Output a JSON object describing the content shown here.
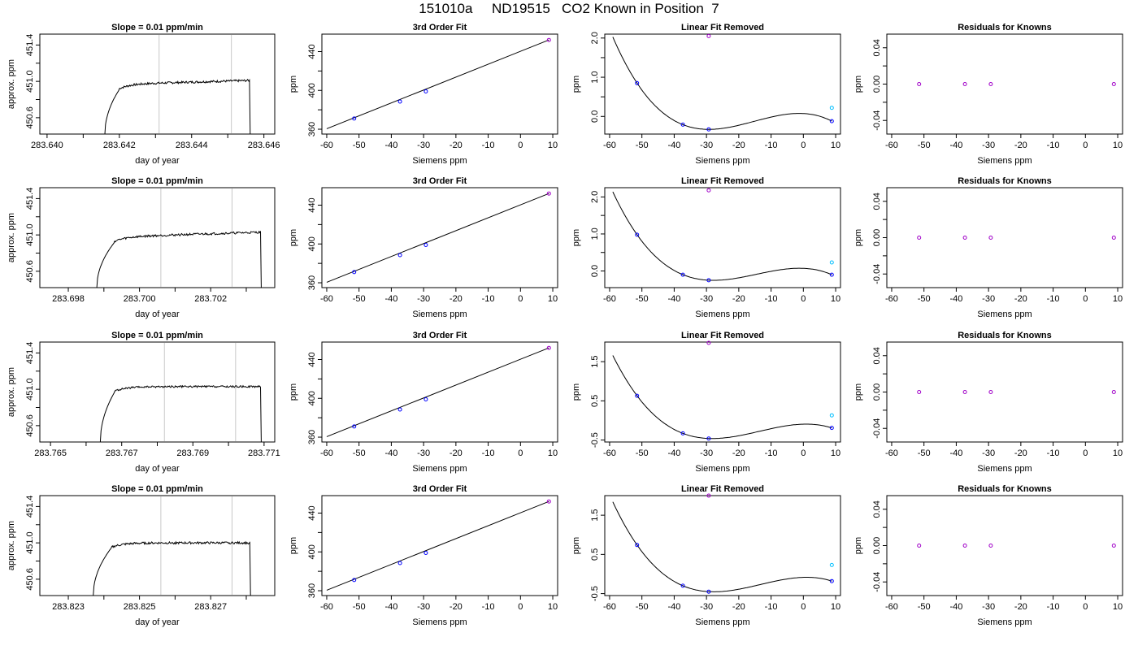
{
  "figure": {
    "title": "151010a     ND19515   CO2 Known in Position  7"
  },
  "colors": {
    "trace": "#000000",
    "window_lines": "#c8c8c8",
    "slope_marker": "#ff0000",
    "known_points": "#0000ff",
    "unknown_point": "#00bfff",
    "residual_points": "#a000c8",
    "fit_line": "#000000",
    "axis": "#000000"
  },
  "chart_data": [
    {
      "type": "line",
      "row": 1,
      "panel": "time_series",
      "title": "Slope =  0.01  ppm/min",
      "xlabel": "day of year",
      "ylabel": "approx. ppm",
      "xlim": [
        283.6398,
        283.6463
      ],
      "ylim": [
        450.42,
        451.52
      ],
      "xticks": [
        283.64,
        283.641,
        283.642,
        283.643,
        283.644,
        283.645,
        283.646
      ],
      "xtick_labels": [
        "283.640",
        "",
        "283.642",
        "",
        "283.644",
        "",
        "283.646"
      ],
      "yticks": [
        450.6,
        450.8,
        451.0,
        451.2,
        451.4
      ],
      "ytick_labels": [
        "450.6",
        "",
        "451.0",
        "",
        "451.4"
      ],
      "vlines": [
        283.6431,
        283.6451
      ],
      "trace": {
        "x_start": 283.6416,
        "rise_end": 283.642,
        "x_end": 283.6456,
        "plateau": 450.97,
        "drift": 0.04,
        "noise": 0.012
      }
    },
    {
      "type": "scatter",
      "row": 1,
      "panel": "third_order_fit",
      "title": "3rd Order Fit",
      "xlabel": "Siemens ppm",
      "ylabel": "ppm",
      "xlim": [
        -61.5,
        11.5
      ],
      "ylim": [
        355,
        458
      ],
      "xticks": [
        -60,
        -50,
        -40,
        -30,
        -20,
        -10,
        0,
        10
      ],
      "xtick_labels": [
        "-60",
        "-50",
        "-40",
        "-30",
        "-20",
        "-10",
        "0",
        "10"
      ],
      "yticks": [
        360,
        380,
        400,
        420,
        440
      ],
      "ytick_labels": [
        "360",
        "",
        "400",
        "",
        "440"
      ],
      "points_known": [
        [
          -51.5,
          371.0
        ],
        [
          -37.3,
          388.5
        ],
        [
          -29.3,
          399.0
        ]
      ],
      "points_extra": [
        [
          8.8,
          452.0
        ]
      ],
      "line": [
        [
          -60,
          360.5
        ],
        [
          8.8,
          452.0
        ]
      ]
    },
    {
      "type": "line",
      "row": 1,
      "panel": "linear_fit_removed",
      "title": "Linear Fit Removed",
      "xlabel": "Siemens ppm",
      "ylabel": "ppm",
      "xlim": [
        -61.5,
        11.5
      ],
      "ylim": [
        -0.45,
        2.1
      ],
      "xticks": [
        -60,
        -50,
        -40,
        -30,
        -20,
        -10,
        0,
        10
      ],
      "xtick_labels": [
        "-60",
        "-50",
        "-40",
        "-30",
        "-20",
        "-10",
        "0",
        "10"
      ],
      "yticks": [
        0.0,
        0.5,
        1.0,
        1.5,
        2.0
      ],
      "ytick_labels": [
        "0.0",
        "",
        "1.0",
        "",
        "2.0"
      ],
      "curve_x_range": [
        -59,
        8.8
      ],
      "poly_zero": 0,
      "points_known": [
        [
          -51.5,
          0.85
        ],
        [
          -37.3,
          -0.21
        ],
        [
          -29.3,
          -0.33
        ],
        [
          8.8,
          -0.12
        ]
      ],
      "point_unknown": [
        8.8,
        0.22
      ],
      "point_outlier": [
        -29.3,
        2.05
      ]
    },
    {
      "type": "scatter",
      "row": 1,
      "panel": "residuals",
      "title": "Residuals for Knowns",
      "xlabel": "Siemens ppm",
      "ylabel": "ppm",
      "xlim": [
        -61.5,
        11.5
      ],
      "ylim": [
        -0.055,
        0.055
      ],
      "xticks": [
        -60,
        -50,
        -40,
        -30,
        -20,
        -10,
        0,
        10
      ],
      "xtick_labels": [
        "-60",
        "-50",
        "-40",
        "-30",
        "-20",
        "-10",
        "0",
        "10"
      ],
      "yticks": [
        -0.04,
        -0.02,
        0.0,
        0.02,
        0.04
      ],
      "ytick_labels": [
        "-0.04",
        "",
        "0.00",
        "",
        "0.04"
      ],
      "points": [
        [
          -51.5,
          0.0
        ],
        [
          -37.3,
          0.0
        ],
        [
          -29.3,
          0.0
        ],
        [
          8.8,
          0.0
        ]
      ]
    },
    {
      "type": "line",
      "row": 2,
      "panel": "time_series",
      "title": "Slope =  0.01  ppm/min",
      "xlabel": "day of year",
      "ylabel": "approx. ppm",
      "xlim": [
        283.6972,
        283.7038
      ],
      "ylim": [
        450.42,
        451.52
      ],
      "xticks": [
        283.698,
        283.699,
        283.7,
        283.701,
        283.702,
        283.703
      ],
      "xtick_labels": [
        "283.698",
        "",
        "283.700",
        "",
        "283.702",
        ""
      ],
      "yticks": [
        450.6,
        450.8,
        451.0,
        451.2,
        451.4
      ],
      "ytick_labels": [
        "450.6",
        "",
        "451.0",
        "",
        "451.4"
      ],
      "vlines": [
        283.7006,
        283.7026
      ],
      "trace": {
        "x_start": 283.6988,
        "rise_end": 283.6993,
        "x_end": 283.7034,
        "plateau": 450.98,
        "drift": 0.05,
        "noise": 0.012
      }
    },
    {
      "type": "scatter",
      "row": 2,
      "panel": "third_order_fit",
      "title": "3rd Order Fit",
      "xlabel": "Siemens ppm",
      "ylabel": "ppm",
      "xlim": [
        -61.5,
        11.5
      ],
      "ylim": [
        355,
        458
      ],
      "xticks": [
        -60,
        -50,
        -40,
        -30,
        -20,
        -10,
        0,
        10
      ],
      "xtick_labels": [
        "-60",
        "-50",
        "-40",
        "-30",
        "-20",
        "-10",
        "0",
        "10"
      ],
      "yticks": [
        360,
        380,
        400,
        420,
        440
      ],
      "ytick_labels": [
        "360",
        "",
        "400",
        "",
        "440"
      ],
      "points_known": [
        [
          -51.5,
          371.0
        ],
        [
          -37.3,
          388.5
        ],
        [
          -29.3,
          399.0
        ]
      ],
      "points_extra": [
        [
          8.8,
          452.0
        ]
      ],
      "line": [
        [
          -60,
          360.5
        ],
        [
          8.8,
          452.0
        ]
      ]
    },
    {
      "type": "line",
      "row": 2,
      "panel": "linear_fit_removed",
      "title": "Linear Fit Removed",
      "xlabel": "Siemens ppm",
      "ylabel": "ppm",
      "xlim": [
        -61.5,
        11.5
      ],
      "ylim": [
        -0.45,
        2.25
      ],
      "xticks": [
        -60,
        -50,
        -40,
        -30,
        -20,
        -10,
        0,
        10
      ],
      "xtick_labels": [
        "-60",
        "-50",
        "-40",
        "-30",
        "-20",
        "-10",
        "0",
        "10"
      ],
      "yticks": [
        0.0,
        0.5,
        1.0,
        1.5,
        2.0
      ],
      "ytick_labels": [
        "0.0",
        "",
        "1.0",
        "",
        "2.0"
      ],
      "curve_x_range": [
        -59,
        8.8
      ],
      "poly_zero": 0,
      "points_known": [
        [
          -51.5,
          0.98
        ],
        [
          -37.3,
          -0.1
        ],
        [
          -29.3,
          -0.25
        ],
        [
          8.8,
          -0.1
        ]
      ],
      "point_unknown": [
        8.8,
        0.23
      ],
      "point_outlier": [
        -29.3,
        2.18
      ]
    },
    {
      "type": "scatter",
      "row": 2,
      "panel": "residuals",
      "title": "Residuals for Knowns",
      "xlabel": "Siemens ppm",
      "ylabel": "ppm",
      "xlim": [
        -61.5,
        11.5
      ],
      "ylim": [
        -0.055,
        0.055
      ],
      "xticks": [
        -60,
        -50,
        -40,
        -30,
        -20,
        -10,
        0,
        10
      ],
      "xtick_labels": [
        "-60",
        "-50",
        "-40",
        "-30",
        "-20",
        "-10",
        "0",
        "10"
      ],
      "yticks": [
        -0.04,
        -0.02,
        0.0,
        0.02,
        0.04
      ],
      "ytick_labels": [
        "-0.04",
        "",
        "0.00",
        "",
        "0.04"
      ],
      "points": [
        [
          -51.5,
          0.0
        ],
        [
          -37.3,
          0.0
        ],
        [
          -29.3,
          0.0
        ],
        [
          8.8,
          0.0
        ]
      ]
    },
    {
      "type": "line",
      "row": 3,
      "panel": "time_series",
      "title": "Slope =  0.01  ppm/min",
      "xlabel": "day of year",
      "ylabel": "approx. ppm",
      "xlim": [
        283.7647,
        283.7713
      ],
      "ylim": [
        450.42,
        451.52
      ],
      "xticks": [
        283.765,
        283.766,
        283.767,
        283.768,
        283.769,
        283.77,
        283.771
      ],
      "xtick_labels": [
        "283.765",
        "",
        "283.767",
        "",
        "283.769",
        "",
        "283.771"
      ],
      "yticks": [
        450.6,
        450.8,
        451.0,
        451.2,
        451.4
      ],
      "ytick_labels": [
        "450.6",
        "",
        "451.0",
        "",
        "451.4"
      ],
      "vlines": [
        283.7682,
        283.7702
      ],
      "trace": {
        "x_start": 283.7664,
        "rise_end": 283.7668,
        "x_end": 283.7709,
        "plateau": 451.03,
        "drift": 0.0,
        "noise": 0.01
      }
    },
    {
      "type": "scatter",
      "row": 3,
      "panel": "third_order_fit",
      "title": "3rd Order Fit",
      "xlabel": "Siemens ppm",
      "ylabel": "ppm",
      "xlim": [
        -61.5,
        11.5
      ],
      "ylim": [
        355,
        458
      ],
      "xticks": [
        -60,
        -50,
        -40,
        -30,
        -20,
        -10,
        0,
        10
      ],
      "xtick_labels": [
        "-60",
        "-50",
        "-40",
        "-30",
        "-20",
        "-10",
        "0",
        "10"
      ],
      "yticks": [
        360,
        380,
        400,
        420,
        440
      ],
      "ytick_labels": [
        "360",
        "",
        "400",
        "",
        "440"
      ],
      "points_known": [
        [
          -51.5,
          371.0
        ],
        [
          -37.3,
          388.5
        ],
        [
          -29.3,
          399.0
        ]
      ],
      "points_extra": [
        [
          8.8,
          452.0
        ]
      ],
      "line": [
        [
          -60,
          360.5
        ],
        [
          8.8,
          452.0
        ]
      ]
    },
    {
      "type": "line",
      "row": 3,
      "panel": "linear_fit_removed",
      "title": "Linear Fit Removed",
      "xlabel": "Siemens ppm",
      "ylabel": "ppm",
      "xlim": [
        -61.5,
        11.5
      ],
      "ylim": [
        -0.55,
        2.0
      ],
      "xticks": [
        -60,
        -50,
        -40,
        -30,
        -20,
        -10,
        0,
        10
      ],
      "xtick_labels": [
        "-60",
        "-50",
        "-40",
        "-30",
        "-20",
        "-10",
        "0",
        "10"
      ],
      "yticks": [
        -0.5,
        0.5,
        1.5
      ],
      "ytick_labels": [
        "-0.5",
        "0.5",
        "1.5"
      ],
      "curve_x_range": [
        -59,
        8.8
      ],
      "poly_zero": 0,
      "points_known": [
        [
          -51.5,
          0.63
        ],
        [
          -37.3,
          -0.33
        ],
        [
          -29.3,
          -0.46
        ],
        [
          8.8,
          -0.19
        ]
      ],
      "point_unknown": [
        8.8,
        0.13
      ],
      "point_outlier": [
        -29.3,
        1.98
      ]
    },
    {
      "type": "scatter",
      "row": 3,
      "panel": "residuals",
      "title": "Residuals for Knowns",
      "xlabel": "Siemens ppm",
      "ylabel": "ppm",
      "xlim": [
        -61.5,
        11.5
      ],
      "ylim": [
        -0.055,
        0.055
      ],
      "xticks": [
        -60,
        -50,
        -40,
        -30,
        -20,
        -10,
        0,
        10
      ],
      "xtick_labels": [
        "-60",
        "-50",
        "-40",
        "-30",
        "-20",
        "-10",
        "0",
        "10"
      ],
      "yticks": [
        -0.04,
        -0.02,
        0.0,
        0.02,
        0.04
      ],
      "ytick_labels": [
        "-0.04",
        "",
        "0.00",
        "",
        "0.04"
      ],
      "points": [
        [
          -51.5,
          0.0
        ],
        [
          -37.3,
          0.0
        ],
        [
          -29.3,
          0.0
        ],
        [
          8.8,
          0.0
        ]
      ]
    },
    {
      "type": "line",
      "row": 4,
      "panel": "time_series",
      "title": "Slope =  0.01  ppm/min",
      "xlabel": "day of year",
      "ylabel": "approx. ppm",
      "xlim": [
        283.8222,
        283.8288
      ],
      "ylim": [
        450.42,
        451.52
      ],
      "xticks": [
        283.823,
        283.824,
        283.825,
        283.826,
        283.827,
        283.828
      ],
      "xtick_labels": [
        "283.823",
        "",
        "283.825",
        "",
        "283.827",
        ""
      ],
      "yticks": [
        450.6,
        450.8,
        451.0,
        451.2,
        451.4
      ],
      "ytick_labels": [
        "450.6",
        "",
        "451.0",
        "",
        "451.4"
      ],
      "vlines": [
        283.8256,
        283.8276
      ],
      "trace": {
        "x_start": 283.8237,
        "rise_end": 283.8242,
        "x_end": 283.8281,
        "plateau": 451.0,
        "drift": 0.0,
        "noise": 0.012
      }
    },
    {
      "type": "scatter",
      "row": 4,
      "panel": "third_order_fit",
      "title": "3rd Order Fit",
      "xlabel": "Siemens ppm",
      "ylabel": "ppm",
      "xlim": [
        -61.5,
        11.5
      ],
      "ylim": [
        355,
        458
      ],
      "xticks": [
        -60,
        -50,
        -40,
        -30,
        -20,
        -10,
        0,
        10
      ],
      "xtick_labels": [
        "-60",
        "-50",
        "-40",
        "-30",
        "-20",
        "-10",
        "0",
        "10"
      ],
      "yticks": [
        360,
        380,
        400,
        420,
        440
      ],
      "ytick_labels": [
        "360",
        "",
        "400",
        "",
        "440"
      ],
      "points_known": [
        [
          -51.5,
          371.0
        ],
        [
          -37.3,
          388.5
        ],
        [
          -29.3,
          399.0
        ]
      ],
      "points_extra": [
        [
          8.8,
          452.0
        ]
      ],
      "line": [
        [
          -60,
          360.5
        ],
        [
          8.8,
          452.0
        ]
      ]
    },
    {
      "type": "line",
      "row": 4,
      "panel": "linear_fit_removed",
      "title": "Linear Fit Removed",
      "xlabel": "Siemens ppm",
      "ylabel": "ppm",
      "xlim": [
        -61.5,
        11.5
      ],
      "ylim": [
        -0.55,
        2.0
      ],
      "xticks": [
        -60,
        -50,
        -40,
        -30,
        -20,
        -10,
        0,
        10
      ],
      "xtick_labels": [
        "-60",
        "-50",
        "-40",
        "-30",
        "-20",
        "-10",
        "0",
        "10"
      ],
      "yticks": [
        -0.5,
        0.5,
        1.5
      ],
      "ytick_labels": [
        "-0.5",
        "0.5",
        "1.5"
      ],
      "curve_x_range": [
        -59,
        8.8
      ],
      "poly_zero": 0,
      "points_known": [
        [
          -51.5,
          0.74
        ],
        [
          -37.3,
          -0.3
        ],
        [
          -29.3,
          -0.45
        ],
        [
          8.8,
          -0.18
        ]
      ],
      "point_unknown": [
        8.8,
        0.23
      ],
      "point_outlier": [
        -29.3,
        2.0
      ]
    },
    {
      "type": "scatter",
      "row": 4,
      "panel": "residuals",
      "title": "Residuals for Knowns",
      "xlabel": "Siemens ppm",
      "ylabel": "ppm",
      "xlim": [
        -61.5,
        11.5
      ],
      "ylim": [
        -0.055,
        0.055
      ],
      "xticks": [
        -60,
        -50,
        -40,
        -30,
        -20,
        -10,
        0,
        10
      ],
      "xtick_labels": [
        "-60",
        "-50",
        "-40",
        "-30",
        "-20",
        "-10",
        "0",
        "10"
      ],
      "yticks": [
        -0.04,
        -0.02,
        0.0,
        0.02,
        0.04
      ],
      "ytick_labels": [
        "-0.04",
        "",
        "0.00",
        "",
        "0.04"
      ],
      "points": [
        [
          -51.5,
          0.0
        ],
        [
          -37.3,
          0.0
        ],
        [
          -29.3,
          0.0
        ],
        [
          8.8,
          0.0
        ]
      ]
    }
  ]
}
